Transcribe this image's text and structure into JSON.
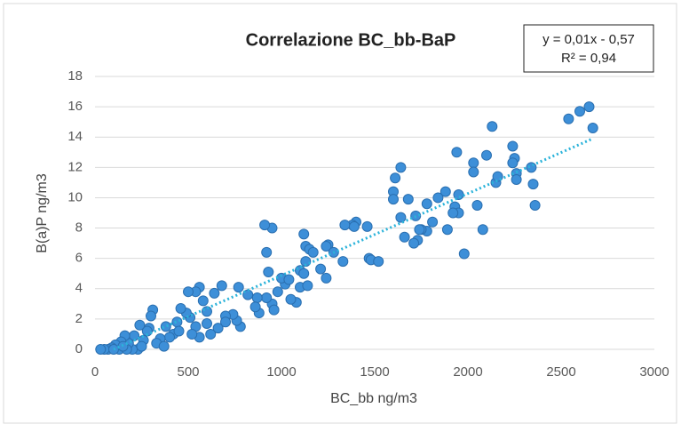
{
  "chart_data": {
    "type": "scatter",
    "title": "Correlazione BC_bb-BaP",
    "xlabel": "BC_bb ng/m3",
    "ylabel": "B(a)P ng/m3",
    "annotations": [
      "y = 0,01x - 0,57",
      "R² = 0,94"
    ],
    "xlim": [
      0,
      3000
    ],
    "xticks": [
      0,
      500,
      1000,
      1500,
      2000,
      2500,
      3000
    ],
    "ylim": [
      0,
      18
    ],
    "yticks": [
      0,
      2,
      4,
      6,
      8,
      10,
      12,
      14,
      16,
      18
    ],
    "grid": true,
    "series": [
      {
        "name": "BaP",
        "color": "#3d8fd8",
        "x": [
          2540,
          2600,
          2650,
          2670,
          2130,
          2240,
          2340,
          2350,
          2360,
          2250,
          2240,
          2260,
          2260,
          2150,
          2160,
          2030,
          2030,
          2100,
          2050,
          2080,
          1980,
          1940,
          1950,
          1930,
          1950,
          1920,
          1880,
          1840,
          1890,
          1780,
          1810,
          1780,
          1750,
          1730,
          1710,
          1720,
          1740,
          1660,
          1680,
          1640,
          1640,
          1610,
          1600,
          1600,
          1460,
          1400,
          1380,
          1340,
          1390,
          1470,
          1480,
          1520,
          1330,
          1250,
          1240,
          1280,
          1240,
          1210,
          1120,
          1130,
          1150,
          1170,
          1130,
          1100,
          1120,
          1100,
          1140,
          1080,
          1050,
          1020,
          1000,
          1040,
          950,
          910,
          920,
          930,
          950,
          960,
          980,
          920,
          870,
          880,
          860,
          770,
          680,
          640,
          560,
          540,
          500,
          580,
          780,
          760,
          740,
          700,
          660,
          620,
          600,
          560,
          540,
          510,
          490,
          460,
          440,
          420,
          400,
          380,
          350,
          310,
          300,
          290,
          280,
          260,
          240,
          230,
          210,
          200,
          180,
          160,
          140,
          130,
          110,
          90,
          70,
          50,
          30,
          170,
          250,
          330,
          370,
          450,
          520,
          600,
          820,
          700,
          150,
          100
        ],
        "values": [
          15.2,
          15.7,
          16.0,
          14.6,
          14.7,
          13.4,
          12.0,
          10.9,
          9.5,
          12.6,
          12.3,
          11.6,
          11.2,
          11.0,
          11.4,
          12.3,
          11.7,
          12.8,
          9.5,
          7.9,
          6.3,
          13.0,
          10.2,
          9.4,
          9.0,
          9.0,
          10.4,
          10.0,
          7.9,
          9.6,
          8.4,
          7.8,
          7.9,
          7.2,
          7.0,
          8.8,
          7.9,
          7.4,
          9.9,
          8.7,
          12.0,
          11.3,
          10.4,
          9.9,
          8.1,
          8.4,
          8.2,
          8.2,
          8.1,
          6.0,
          5.9,
          5.8,
          5.8,
          6.9,
          6.8,
          6.4,
          4.7,
          5.3,
          7.6,
          6.8,
          6.6,
          6.4,
          5.8,
          5.2,
          5.0,
          4.1,
          4.2,
          3.1,
          3.3,
          4.3,
          4.7,
          4.6,
          8.0,
          8.2,
          6.4,
          5.1,
          3.0,
          2.6,
          3.8,
          3.4,
          3.4,
          2.4,
          2.8,
          4.1,
          4.2,
          3.7,
          4.1,
          3.8,
          3.8,
          3.2,
          1.5,
          1.9,
          2.3,
          2.2,
          1.4,
          1.0,
          1.7,
          0.8,
          1.5,
          2.1,
          2.4,
          2.7,
          1.8,
          1.0,
          0.8,
          1.5,
          0.7,
          2.6,
          2.2,
          1.4,
          1.2,
          0.6,
          1.6,
          0.0,
          0.9,
          0.0,
          0.4,
          0.9,
          0.5,
          0.0,
          0.3,
          0.1,
          0.0,
          0.0,
          0.0,
          0.0,
          0.2,
          0.4,
          0.2,
          1.2,
          1.0,
          2.5,
          3.6,
          1.8,
          0.2,
          0.0
        ]
      }
    ],
    "trendline": {
      "color": "#2bb3da",
      "x": [
        100,
        2670
      ],
      "values": [
        0,
        13.9
      ]
    }
  }
}
